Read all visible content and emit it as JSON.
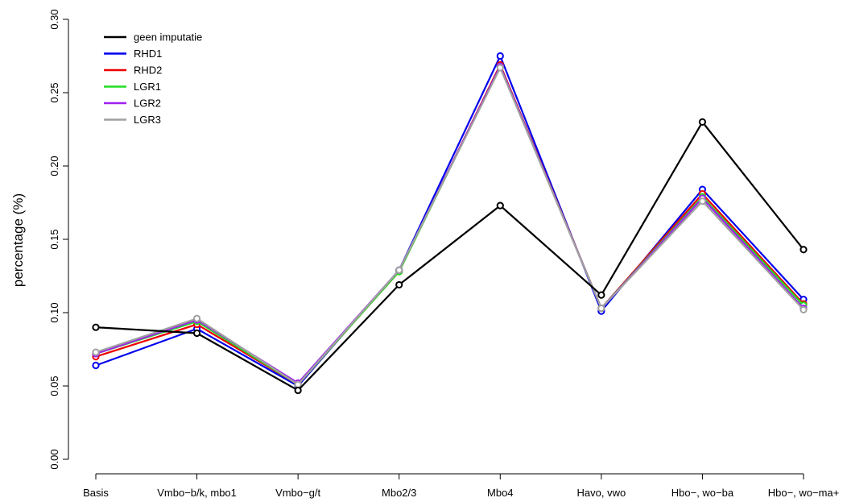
{
  "chart_data": {
    "type": "line",
    "ylabel": "percentage (%)",
    "xlabel": "",
    "ylim": [
      0,
      0.3
    ],
    "yticks": [
      "0.00",
      "0.05",
      "0.10",
      "0.15",
      "0.20",
      "0.25",
      "0.30"
    ],
    "categories": [
      "Basis",
      "Vmbo−b/k, mbo1",
      "Vmbo−g/t",
      "Mbo2/3",
      "Mbo4",
      "Havo, vwo",
      "Hbo−, wo−ba",
      "Hbo−, wo−ma+"
    ],
    "legend_position": "top-left",
    "markers": "open-circle",
    "series": [
      {
        "name": "geen imputatie",
        "color": "#000000",
        "values": [
          0.09,
          0.086,
          0.047,
          0.119,
          0.173,
          0.112,
          0.23,
          0.143
        ]
      },
      {
        "name": "RHD1",
        "color": "#0000ee",
        "values": [
          0.064,
          0.089,
          0.05,
          0.129,
          0.275,
          0.101,
          0.184,
          0.109
        ]
      },
      {
        "name": "RHD2",
        "color": "#ee0000",
        "values": [
          0.07,
          0.092,
          0.051,
          0.128,
          0.269,
          0.103,
          0.181,
          0.106
        ]
      },
      {
        "name": "LGR1",
        "color": "#22dd22",
        "values": [
          0.072,
          0.094,
          0.051,
          0.128,
          0.268,
          0.103,
          0.179,
          0.105
        ]
      },
      {
        "name": "LGR2",
        "color": "#a020f0",
        "values": [
          0.072,
          0.095,
          0.052,
          0.129,
          0.268,
          0.103,
          0.178,
          0.103
        ]
      },
      {
        "name": "LGR3",
        "color": "#a0a0a0",
        "values": [
          0.073,
          0.096,
          0.051,
          0.129,
          0.267,
          0.103,
          0.176,
          0.102
        ]
      }
    ]
  }
}
